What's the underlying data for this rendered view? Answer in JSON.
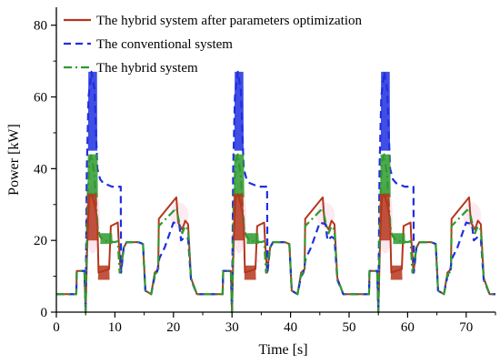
{
  "chart_data": {
    "type": "line",
    "title": "",
    "xlabel": "Time [s]",
    "ylabel": "Power [kW]",
    "xlim": [
      0,
      75
    ],
    "ylim": [
      0,
      85
    ],
    "x_ticks": [
      0,
      10,
      20,
      30,
      40,
      50,
      60,
      70
    ],
    "y_ticks": [
      0,
      20,
      40,
      60,
      80
    ],
    "grid": false,
    "legend_position": "top-left",
    "cycle_period_s": 25,
    "cycle_starts_s": [
      0,
      25,
      50
    ],
    "series": [
      {
        "name": "The hybrid system after parameters optimization",
        "color": "#b5361c",
        "style": "solid",
        "cycle_points": [
          [
            0,
            5
          ],
          [
            3.4,
            5
          ],
          [
            3.5,
            11.5
          ],
          [
            4.8,
            11.5
          ],
          [
            5.0,
            0
          ],
          [
            5.3,
            20
          ],
          [
            5.6,
            32
          ],
          [
            6.0,
            33
          ],
          [
            6.5,
            30
          ],
          [
            7.0,
            26
          ],
          [
            7.2,
            11
          ],
          [
            9.0,
            12
          ],
          [
            9.3,
            24
          ],
          [
            10.5,
            25
          ],
          [
            10.6,
            21
          ],
          [
            11.0,
            11
          ],
          [
            11.5,
            18
          ],
          [
            12.0,
            19.5
          ],
          [
            14.0,
            19.5
          ],
          [
            14.8,
            19
          ],
          [
            15.2,
            6
          ],
          [
            16.2,
            5
          ],
          [
            16.8,
            11
          ],
          [
            17.4,
            12
          ],
          [
            17.5,
            26
          ],
          [
            20.5,
            32
          ],
          [
            20.8,
            25
          ],
          [
            21.5,
            23
          ],
          [
            22.0,
            25.5
          ],
          [
            22.5,
            24.5
          ],
          [
            23.0,
            9.5
          ],
          [
            24.0,
            5
          ],
          [
            25.0,
            5
          ]
        ]
      },
      {
        "name": "The conventional system",
        "color": "#1f2fe0",
        "style": "dashed",
        "cycle_points": [
          [
            0,
            5
          ],
          [
            3.4,
            5
          ],
          [
            3.5,
            11.5
          ],
          [
            4.8,
            11.5
          ],
          [
            5.0,
            0
          ],
          [
            5.2,
            40
          ],
          [
            5.5,
            60
          ],
          [
            6.0,
            67
          ],
          [
            6.5,
            62
          ],
          [
            7.0,
            40
          ],
          [
            7.5,
            37
          ],
          [
            8.0,
            36
          ],
          [
            9.5,
            35
          ],
          [
            11.0,
            35
          ],
          [
            11.05,
            11
          ],
          [
            11.5,
            18
          ],
          [
            12.0,
            19.5
          ],
          [
            14.0,
            19.5
          ],
          [
            14.8,
            19
          ],
          [
            15.2,
            6
          ],
          [
            16.2,
            5
          ],
          [
            16.8,
            10
          ],
          [
            17.2,
            11
          ],
          [
            17.6,
            15
          ],
          [
            18.5,
            18
          ],
          [
            20.0,
            25
          ],
          [
            21.0,
            24.5
          ],
          [
            21.3,
            20
          ],
          [
            22.0,
            21
          ],
          [
            22.5,
            20.5
          ],
          [
            23.0,
            9
          ],
          [
            24.0,
            5
          ],
          [
            25.0,
            5
          ]
        ]
      },
      {
        "name": "The hybrid system",
        "color": "#2e9a2e",
        "style": "dashdot",
        "cycle_points": [
          [
            0,
            5
          ],
          [
            3.4,
            5
          ],
          [
            3.5,
            11.5
          ],
          [
            4.8,
            11.5
          ],
          [
            5.0,
            0
          ],
          [
            5.3,
            30
          ],
          [
            5.6,
            42
          ],
          [
            6.0,
            44
          ],
          [
            6.5,
            38
          ],
          [
            7.0,
            24
          ],
          [
            7.5,
            21
          ],
          [
            8.0,
            20
          ],
          [
            10.0,
            19.5
          ],
          [
            10.5,
            19.8
          ],
          [
            10.8,
            11
          ],
          [
            11.5,
            18
          ],
          [
            12.0,
            19.5
          ],
          [
            14.0,
            19.5
          ],
          [
            14.8,
            19
          ],
          [
            15.2,
            6
          ],
          [
            16.2,
            5
          ],
          [
            16.8,
            10.5
          ],
          [
            17.4,
            11.5
          ],
          [
            17.5,
            24
          ],
          [
            20.5,
            29
          ],
          [
            21.0,
            25
          ],
          [
            21.5,
            22
          ],
          [
            22.0,
            24
          ],
          [
            22.5,
            23
          ],
          [
            23.0,
            9.5
          ],
          [
            24.0,
            5
          ],
          [
            25.0,
            5
          ]
        ]
      }
    ],
    "x_tick_labels": [
      "0",
      "10",
      "20",
      "30",
      "40",
      "50",
      "60",
      "70"
    ],
    "y_tick_labels": [
      "0",
      "20",
      "40",
      "60",
      "80"
    ]
  }
}
